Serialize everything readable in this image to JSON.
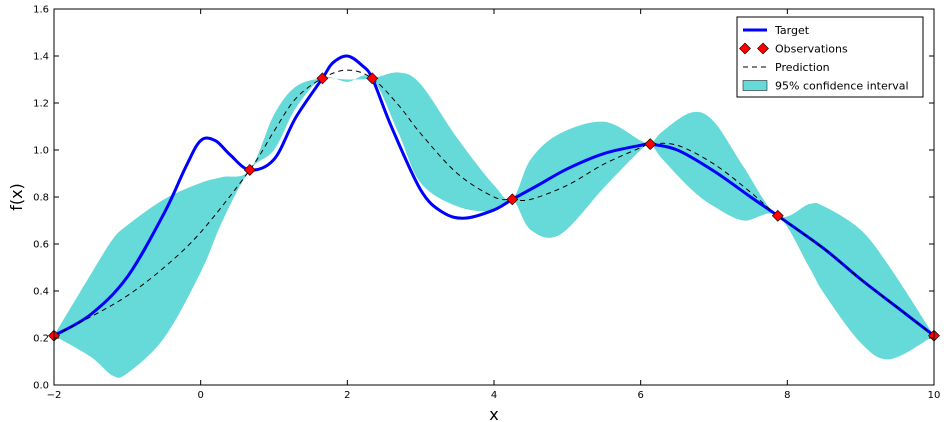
{
  "chart_data": {
    "type": "line",
    "title": "",
    "xlabel": "x",
    "ylabel": "f(x)",
    "xlim": [
      -2,
      10
    ],
    "ylim": [
      0.0,
      1.6
    ],
    "x_ticks": [
      -2,
      0,
      2,
      4,
      6,
      8,
      10
    ],
    "y_ticks": [
      0.0,
      0.2,
      0.4,
      0.6,
      0.8,
      1.0,
      1.2,
      1.4,
      1.6
    ],
    "x_tick_labels": [
      "−2",
      "0",
      "2",
      "4",
      "6",
      "8",
      "10"
    ],
    "y_tick_labels": [
      "0.0",
      "0.2",
      "0.4",
      "0.6",
      "0.8",
      "1.0",
      "1.2",
      "1.4",
      "1.6"
    ],
    "grid": false,
    "legend_position": "top-right",
    "legend": [
      "Target",
      "Observations",
      "Prediction",
      "95% confidence interval"
    ],
    "colors": {
      "target": "#0000ff",
      "observations": "#ff0000",
      "prediction": "#000000",
      "confidence": "#66d9d9"
    },
    "target": {
      "x": [
        -2,
        -1.5,
        -1,
        -0.5,
        -0.2,
        0.0,
        0.2,
        0.4,
        0.67,
        1.0,
        1.3,
        1.66,
        1.8,
        2.0,
        2.2,
        2.34,
        2.6,
        3.0,
        3.3,
        3.6,
        4.0,
        4.25,
        4.6,
        5.0,
        5.5,
        6.0,
        6.13,
        6.5,
        7.0,
        7.5,
        7.87,
        8.5,
        9.0,
        9.5,
        10.0
      ],
      "y": [
        0.21,
        0.3,
        0.46,
        0.73,
        0.93,
        1.04,
        1.04,
        0.98,
        0.915,
        0.96,
        1.14,
        1.305,
        1.37,
        1.4,
        1.36,
        1.305,
        1.1,
        0.83,
        0.735,
        0.71,
        0.745,
        0.79,
        0.85,
        0.92,
        0.985,
        1.02,
        1.025,
        1.0,
        0.91,
        0.8,
        0.72,
        0.58,
        0.45,
        0.33,
        0.21
      ]
    },
    "prediction": {
      "x": [
        -2,
        -1.5,
        -1,
        -0.5,
        0.0,
        0.67,
        1.0,
        1.3,
        1.66,
        2.0,
        2.34,
        2.7,
        3.0,
        3.5,
        4.0,
        4.25,
        4.5,
        5.0,
        5.5,
        6.0,
        6.13,
        6.5,
        7.0,
        7.5,
        7.87,
        8.5,
        9.0,
        9.5,
        10.0
      ],
      "y": [
        0.21,
        0.29,
        0.38,
        0.5,
        0.65,
        0.915,
        1.08,
        1.22,
        1.305,
        1.34,
        1.305,
        1.19,
        1.07,
        0.9,
        0.8,
        0.79,
        0.79,
        0.85,
        0.94,
        1.01,
        1.025,
        1.02,
        0.94,
        0.82,
        0.72,
        0.58,
        0.45,
        0.33,
        0.21
      ]
    },
    "confidence_interval": {
      "x": [
        -2,
        -1.5,
        -1.2,
        -1,
        -0.5,
        0.0,
        0.3,
        0.67,
        1.0,
        1.3,
        1.66,
        2.0,
        2.34,
        2.7,
        3.0,
        3.5,
        4.0,
        4.25,
        4.5,
        4.9,
        5.5,
        6.0,
        6.13,
        6.3,
        6.7,
        7.0,
        7.4,
        7.87,
        8.3,
        8.5,
        9.0,
        9.4,
        10.0
      ],
      "upper": [
        0.21,
        0.47,
        0.62,
        0.68,
        0.79,
        0.86,
        0.885,
        0.915,
        1.15,
        1.27,
        1.305,
        1.3,
        1.305,
        1.33,
        1.28,
        1.05,
        0.85,
        0.79,
        0.96,
        1.07,
        1.12,
        1.04,
        1.025,
        1.08,
        1.16,
        1.12,
        0.93,
        0.72,
        0.77,
        0.76,
        0.66,
        0.5,
        0.21
      ],
      "lower": [
        0.21,
        0.12,
        0.04,
        0.05,
        0.2,
        0.48,
        0.7,
        0.915,
        1.0,
        1.18,
        1.305,
        1.29,
        1.305,
        1.07,
        0.86,
        0.76,
        0.74,
        0.79,
        0.66,
        0.64,
        0.84,
        1.0,
        1.025,
        0.96,
        0.83,
        0.76,
        0.7,
        0.72,
        0.5,
        0.39,
        0.18,
        0.11,
        0.21
      ]
    },
    "observations": {
      "x": [
        -2,
        0.67,
        1.66,
        2.34,
        4.25,
        6.13,
        7.87,
        10.0
      ],
      "y": [
        0.21,
        0.915,
        1.305,
        1.305,
        0.79,
        1.025,
        0.72,
        0.21
      ]
    }
  }
}
